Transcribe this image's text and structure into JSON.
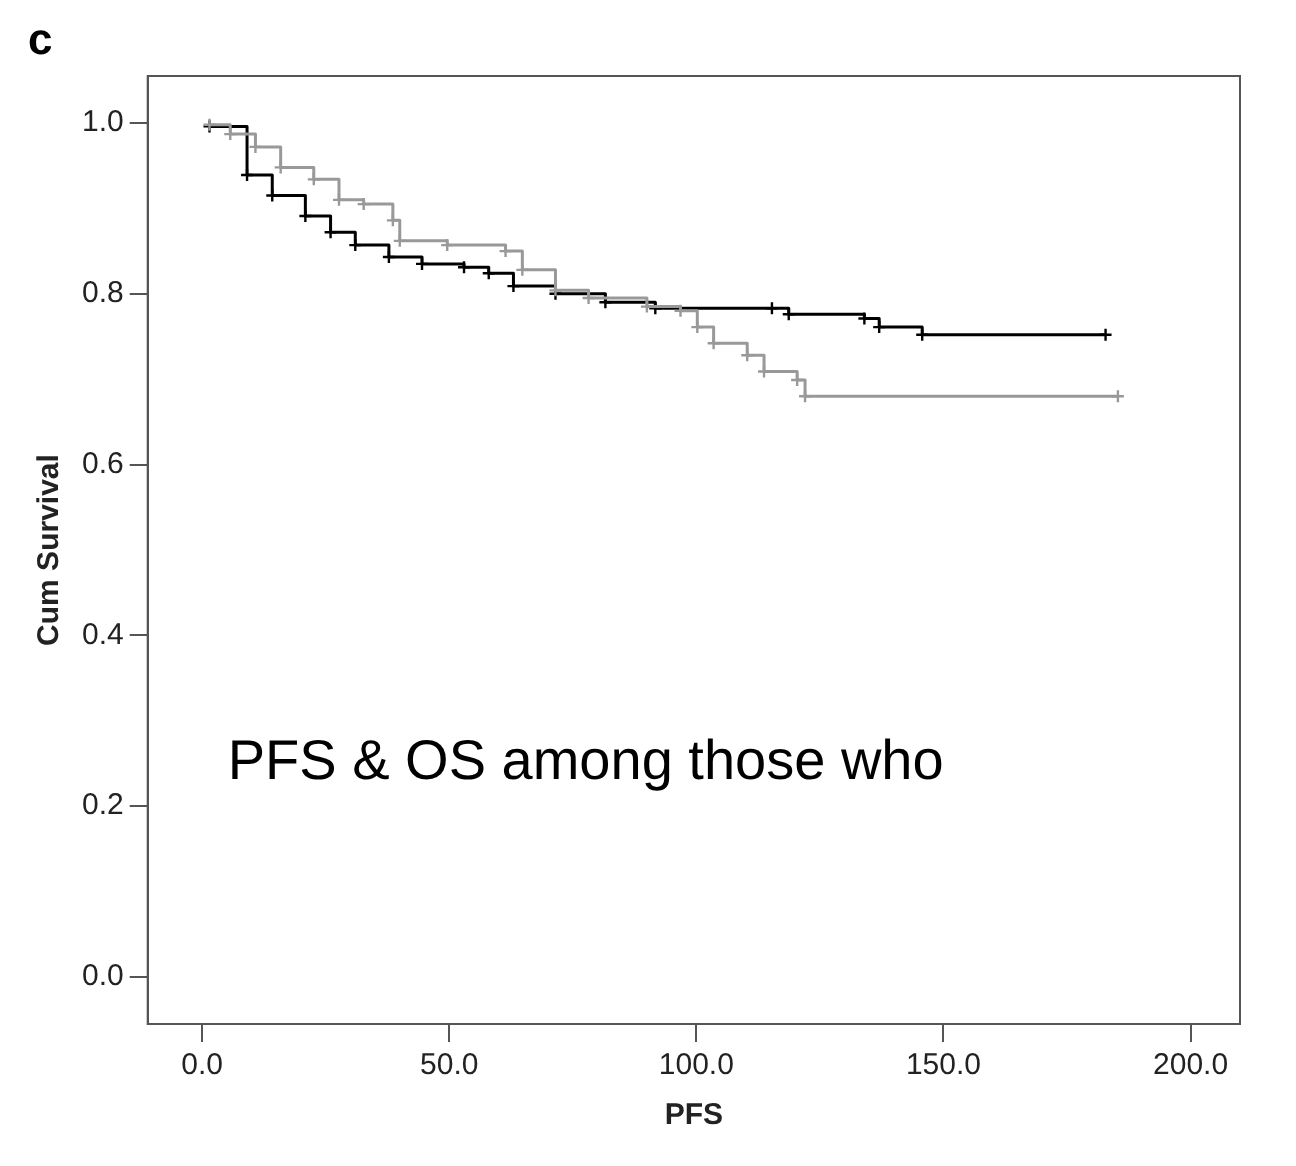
{
  "chart_data": {
    "type": "step",
    "xlabel": "PFS",
    "ylabel": "Cum Survival",
    "annotations": [
      "c",
      "PFS & OS among those who"
    ],
    "xlim": [
      -11,
      210
    ],
    "ylim": [
      -0.055,
      1.055
    ],
    "xticks": [
      {
        "value": 0,
        "label": "0.0"
      },
      {
        "value": 50,
        "label": "50.0"
      },
      {
        "value": 100,
        "label": "100.0"
      },
      {
        "value": 150,
        "label": "150.0"
      },
      {
        "value": 200,
        "label": "200.0"
      }
    ],
    "yticks": [
      {
        "value": 0,
        "label": "0.0"
      },
      {
        "value": 0.2,
        "label": "0.2"
      },
      {
        "value": 0.4,
        "label": "0.4"
      },
      {
        "value": 0.6,
        "label": "0.6"
      },
      {
        "value": 0.8,
        "label": "0.8"
      },
      {
        "value": 1,
        "label": "1.0"
      }
    ],
    "grid": false,
    "legend": false,
    "marker": "cross",
    "line_style": "solid",
    "series": [
      {
        "color": "#999999",
        "x": [
          1.5,
          5.7,
          10.8,
          15.9,
          22.6,
          27.7,
          32.7,
          38.6,
          40,
          49.6,
          61.4,
          64.8,
          71.5,
          78.2,
          90,
          96.8,
          100.2,
          103.5,
          110.3,
          113.7,
          120.4,
          122,
          185.3
        ],
        "values": [
          0.998,
          0.987,
          0.972,
          0.948,
          0.934,
          0.91,
          0.905,
          0.886,
          0.862,
          0.857,
          0.85,
          0.828,
          0.804,
          0.795,
          0.785,
          0.78,
          0.761,
          0.742,
          0.728,
          0.709,
          0.699,
          0.68,
          0.68
        ]
      },
      {
        "color": "#000000",
        "x": [
          1.5,
          9.1,
          14.2,
          20.9,
          26,
          31,
          37.8,
          44.5,
          53,
          58,
          63,
          71.5,
          81.6,
          91.7,
          115.3,
          118.7,
          134,
          137,
          145.7,
          182.8
        ],
        "values": [
          0.996,
          0.939,
          0.915,
          0.891,
          0.872,
          0.857,
          0.843,
          0.835,
          0.831,
          0.824,
          0.809,
          0.8,
          0.79,
          0.783,
          0.783,
          0.776,
          0.771,
          0.761,
          0.752,
          0.752
        ]
      }
    ]
  }
}
